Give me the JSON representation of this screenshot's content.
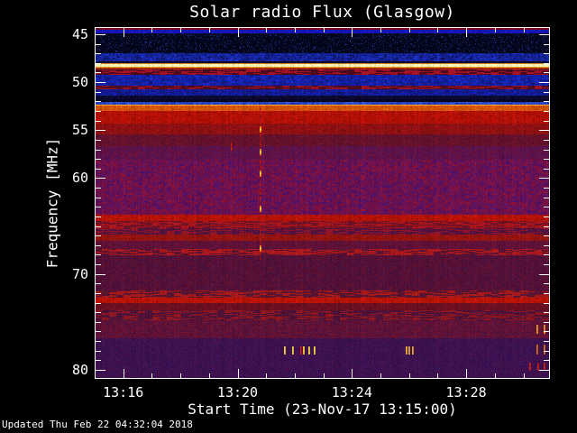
{
  "title": "Solar radio Flux (Glasgow)",
  "updated_text": "Updated Thu Feb 22 04:32:04 2018",
  "colors": {
    "background": "#000000",
    "text": "#ffffff",
    "axis": "#ffffff"
  },
  "axes": {
    "x": {
      "title": "Start Time (23-Nov-17 13:15:00)",
      "ticks": [
        {
          "label": "13:16",
          "minute": 1
        },
        {
          "label": "13:20",
          "minute": 5
        },
        {
          "label": "13:24",
          "minute": 9
        },
        {
          "label": "13:28",
          "minute": 13
        }
      ],
      "minor_step_minutes": 1,
      "range_minutes": [
        0,
        15.93
      ]
    },
    "y": {
      "title": "Frequency [MHz]",
      "ticks": [
        {
          "label": "45",
          "value": 45
        },
        {
          "label": "50",
          "value": 50
        },
        {
          "label": "55",
          "value": 55
        },
        {
          "label": "60",
          "value": 60
        },
        {
          "label": "70",
          "value": 70
        },
        {
          "label": "80",
          "value": 80
        }
      ],
      "minor_step_mhz": 1,
      "range_mhz": [
        44.25,
        80.94
      ]
    }
  },
  "chart_data": {
    "type": "heatmap",
    "subtype": "radio-dynamic-spectrum",
    "title": "Solar radio Flux (Glasgow)",
    "xlabel": "Start Time (23-Nov-17 13:15:00)",
    "ylabel": "Frequency [MHz]",
    "time_range_minutes": [
      0,
      15.93
    ],
    "freq_range_mhz": [
      44.25,
      80.94
    ],
    "bands": [
      {
        "f0": 44.25,
        "f1": 44.55,
        "tex": "flat",
        "a": "#7c0a1c"
      },
      {
        "f0": 44.55,
        "f1": 44.95,
        "tex": "flat",
        "a": "#1515b8"
      },
      {
        "f0": 44.95,
        "f1": 46.95,
        "tex": "speckle",
        "a": "#04061c",
        "b": "#16246e",
        "d": 0.1
      },
      {
        "f0": 46.95,
        "f1": 47.78,
        "tex": "mottle",
        "a": "#1d33cc",
        "b": "#0a1160"
      },
      {
        "f0": 47.78,
        "f1": 48.02,
        "tex": "flat",
        "a": "#0a0a30"
      },
      {
        "f0": 48.02,
        "f1": 48.13,
        "tex": "flat",
        "a": "#d2861c"
      },
      {
        "f0": 48.13,
        "f1": 48.38,
        "tex": "flat",
        "a": "#f7f0b6",
        "j": 26
      },
      {
        "f0": 48.38,
        "f1": 48.52,
        "tex": "flat",
        "a": "#e8a81e"
      },
      {
        "f0": 48.52,
        "f1": 48.64,
        "tex": "flat",
        "a": "#a62810"
      },
      {
        "f0": 48.64,
        "f1": 49.26,
        "tex": "dash",
        "a": "#4c0a1e",
        "b": "#a01224",
        "d": 0.45
      },
      {
        "f0": 49.26,
        "f1": 50.36,
        "tex": "mottle",
        "a": "#1b2cd6",
        "b": "#0d1470"
      },
      {
        "f0": 50.36,
        "f1": 50.76,
        "tex": "dash",
        "a": "#500c20",
        "b": "#981226",
        "d": 0.4
      },
      {
        "f0": 50.76,
        "f1": 51.42,
        "tex": "mottle",
        "a": "#1a23c0",
        "b": "#0c1264"
      },
      {
        "f0": 51.42,
        "f1": 51.78,
        "tex": "flat",
        "a": "#0a0930"
      },
      {
        "f0": 51.78,
        "f1": 52.06,
        "tex": "flat",
        "a": "#070724"
      },
      {
        "f0": 52.06,
        "f1": 52.31,
        "tex": "mottle",
        "a": "#3d58dc",
        "b": "#1a2a9a"
      },
      {
        "f0": 52.31,
        "f1": 52.44,
        "tex": "flat",
        "a": "#f0a838"
      },
      {
        "f0": 52.44,
        "f1": 53.02,
        "tex": "mottle",
        "a": "#e2600e",
        "b": "#c44408"
      },
      {
        "f0": 53.02,
        "f1": 54.35,
        "tex": "mottle",
        "a": "#c41308",
        "b": "#9e0d06"
      },
      {
        "f0": 54.35,
        "f1": 55.45,
        "tex": "mottle",
        "a": "#9c1210",
        "b": "#7e0e14"
      },
      {
        "f0": 55.45,
        "f1": 56.7,
        "tex": "mottle",
        "a": "#701226",
        "b": "#581030"
      },
      {
        "f0": 56.7,
        "f1": 58.1,
        "tex": "mottle",
        "a": "#6e1038",
        "b": "#4c1458"
      },
      {
        "f0": 58.1,
        "f1": 63.8,
        "tex": "mottle",
        "a": "#8f1030",
        "b": "#441270"
      },
      {
        "f0": 63.8,
        "f1": 64.46,
        "tex": "mottle",
        "a": "#c41508",
        "b": "#a21006"
      },
      {
        "f0": 64.46,
        "f1": 65.22,
        "tex": "dash",
        "a": "#6e1226",
        "b": "#a8141c",
        "d": 0.5
      },
      {
        "f0": 65.22,
        "f1": 65.88,
        "tex": "dash",
        "a": "#54123e",
        "b": "#8e1426",
        "d": 0.35
      },
      {
        "f0": 65.88,
        "f1": 66.52,
        "tex": "mottle",
        "a": "#a21512",
        "b": "#84120e"
      },
      {
        "f0": 66.52,
        "f1": 67.38,
        "tex": "mottle",
        "a": "#53123f",
        "b": "#6b1030"
      },
      {
        "f0": 67.38,
        "f1": 68.04,
        "tex": "dash",
        "a": "#5a1232",
        "b": "#a8181c",
        "d": 0.55
      },
      {
        "f0": 68.04,
        "f1": 71.7,
        "tex": "mottle",
        "a": "#441140",
        "b": "#62102e"
      },
      {
        "f0": 71.7,
        "f1": 72.46,
        "tex": "dash",
        "a": "#581430",
        "b": "#a41a1a",
        "d": 0.5
      },
      {
        "f0": 72.46,
        "f1": 73.04,
        "tex": "mottle",
        "a": "#c81508",
        "b": "#a61106"
      },
      {
        "f0": 73.04,
        "f1": 73.8,
        "tex": "mottle",
        "a": "#77101e",
        "b": "#5c0f22"
      },
      {
        "f0": 73.8,
        "f1": 74.85,
        "tex": "dash",
        "a": "#4e1238",
        "b": "#8c1620",
        "d": 0.45
      },
      {
        "f0": 74.85,
        "f1": 76.7,
        "tex": "mottle",
        "a": "#4c113e",
        "b": "#701330"
      },
      {
        "f0": 76.7,
        "f1": 80.94,
        "tex": "mottle",
        "a": "#331253",
        "b": "#46104a"
      }
    ],
    "events": {
      "streak": {
        "minute": 5.78,
        "f0": 52.4,
        "f1": 68.5,
        "color": "#a01616",
        "dot_color": "#ffd040",
        "dots": [
          54.9,
          57.2,
          59.5,
          63.2,
          67.3
        ]
      },
      "bursts": [
        {
          "minutes": [
            4.75
          ],
          "f0": 56.3,
          "f1": 57.0,
          "color": "#b42818"
        },
        {
          "minutes": [
            6.62,
            6.9,
            7.3,
            7.47,
            7.66
          ],
          "f0": 77.55,
          "f1": 78.35,
          "color": "#e6ce3e"
        },
        {
          "minutes": [
            7.19
          ],
          "f0": 77.55,
          "f1": 78.35,
          "color": "#c62214"
        },
        {
          "minutes": [
            10.88,
            10.98,
            11.1
          ],
          "f0": 77.55,
          "f1": 78.35,
          "color": "#e0a830"
        },
        {
          "minutes": [
            15.45,
            15.7
          ],
          "f0": 75.3,
          "f1": 76.1,
          "color": "#e09828"
        },
        {
          "minutes": [
            15.45,
            15.7
          ],
          "f0": 77.4,
          "f1": 78.3,
          "color": "#d07820"
        },
        {
          "minutes": [
            15.2,
            15.5,
            15.72
          ],
          "f0": 79.2,
          "f1": 80.0,
          "color": "#c02818"
        }
      ]
    }
  }
}
